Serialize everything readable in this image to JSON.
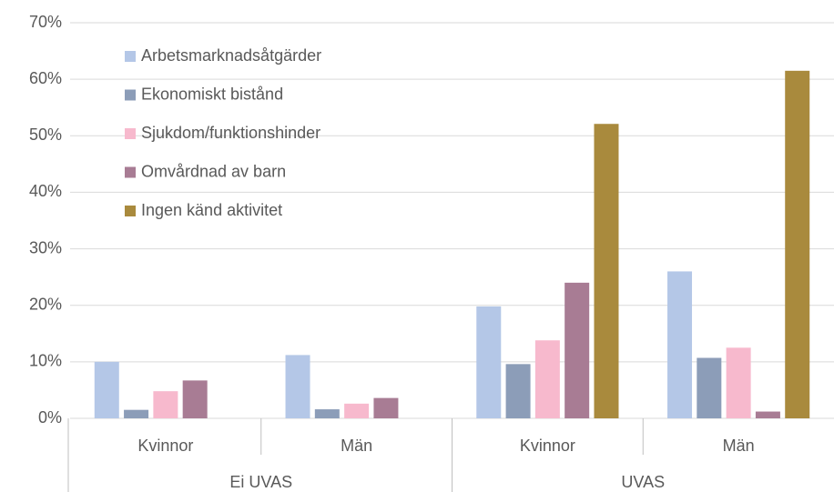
{
  "chart_data": {
    "type": "bar",
    "groups": [
      {
        "name": "Ei UVAS",
        "categories": [
          "Kvinnor",
          "Män"
        ]
      },
      {
        "name": "UVAS",
        "categories": [
          "Kvinnor",
          "Män"
        ]
      }
    ],
    "series": [
      {
        "name": "Arbetsmarknadsåtgärder",
        "color": "#b4c7e7",
        "values": [
          10,
          11.2,
          19.8,
          26
        ]
      },
      {
        "name": "Ekonomiskt bistånd",
        "color": "#8c9db8",
        "values": [
          1.5,
          1.6,
          9.6,
          10.7
        ]
      },
      {
        "name": "Sjukdom/funktionshinder",
        "color": "#f7b9cd",
        "values": [
          4.8,
          2.6,
          13.8,
          12.5
        ]
      },
      {
        "name": "Omvårdnad av barn",
        "color": "#a87c94",
        "values": [
          6.7,
          3.6,
          24,
          1.2
        ]
      },
      {
        "name": "Ingen känd aktivitet",
        "color": "#a98a3d",
        "values": [
          0,
          0,
          52.1,
          61.5
        ]
      }
    ],
    "ylim": [
      0,
      70
    ],
    "yticks": [
      {
        "value": 0,
        "label": "0%"
      },
      {
        "value": 10,
        "label": "10%"
      },
      {
        "value": 20,
        "label": "20%"
      },
      {
        "value": 30,
        "label": "30%"
      },
      {
        "value": 40,
        "label": "40%"
      },
      {
        "value": 50,
        "label": "50%"
      },
      {
        "value": 60,
        "label": "60%"
      },
      {
        "value": 70,
        "label": "70%"
      }
    ],
    "grid": true,
    "legend": "top-left"
  }
}
